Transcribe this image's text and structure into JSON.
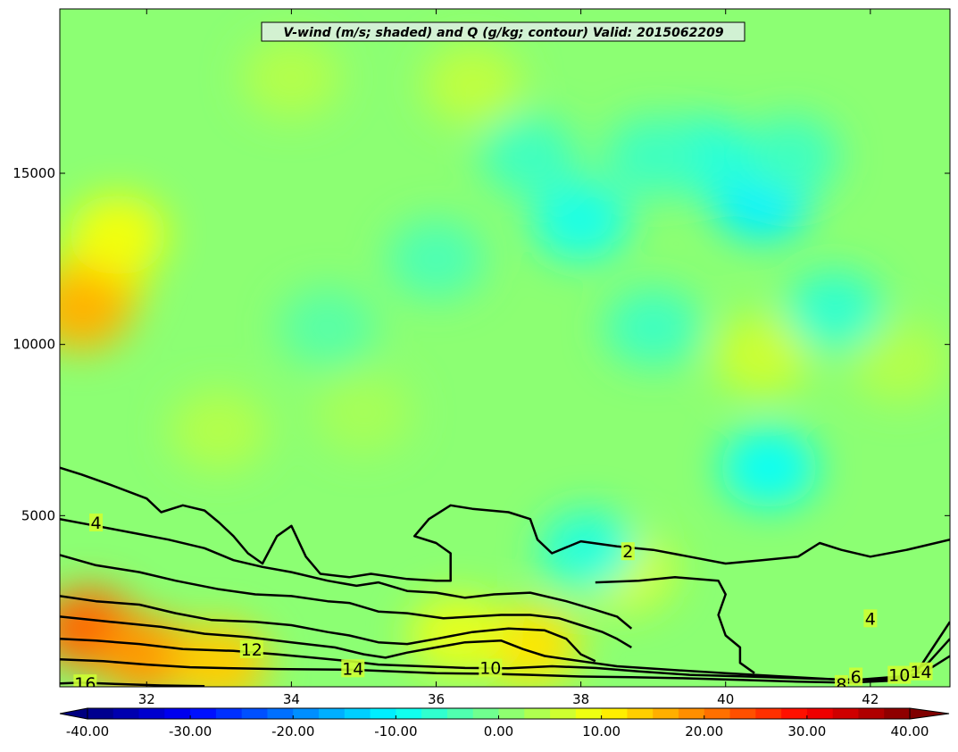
{
  "chart_data": {
    "type": "heatmap",
    "title": "V-wind (m/s; shaded) and Q (g/kg; contour) Valid: 2015062209",
    "xlabel": "",
    "ylabel": "",
    "xlim": [
      30.8,
      43.1
    ],
    "ylim": [
      0,
      19800
    ],
    "x_ticks": [
      32,
      34,
      36,
      38,
      40,
      42
    ],
    "x_tick_labels": [
      "32",
      "34",
      "36",
      "38",
      "40",
      "42"
    ],
    "y_ticks": [
      5000,
      10000,
      15000
    ],
    "y_tick_labels": [
      "5000",
      "10000",
      "15000"
    ],
    "colorbar": {
      "min": -40,
      "max": 40,
      "step": 2.5,
      "ticks": [
        -40,
        -30,
        -20,
        -10,
        0,
        10,
        20,
        30,
        40
      ],
      "tick_labels": [
        "-40.00",
        "-30.00",
        "-20.00",
        "-10.00",
        "0.00",
        "10.00",
        "20.00",
        "30.00",
        "40.00"
      ],
      "extend": "both",
      "colormap": "jet"
    },
    "shaded_regions": [
      {
        "x": 31.3,
        "y": 11800,
        "value": 12
      },
      {
        "x": 31.1,
        "y": 11000,
        "value": 16
      },
      {
        "x": 31.6,
        "y": 13200,
        "value": 9
      },
      {
        "x": 31.2,
        "y": 1700,
        "value": 22
      },
      {
        "x": 32.0,
        "y": 900,
        "value": 18
      },
      {
        "x": 33.0,
        "y": 700,
        "value": 14
      },
      {
        "x": 37.3,
        "y": 1200,
        "value": 12
      },
      {
        "x": 36.3,
        "y": 1500,
        "value": 8
      },
      {
        "x": 38.6,
        "y": 3400,
        "value": 7
      },
      {
        "x": 40.6,
        "y": 6400,
        "value": -9
      },
      {
        "x": 40.5,
        "y": 14200,
        "value": -11
      },
      {
        "x": 40.9,
        "y": 15500,
        "value": -5
      },
      {
        "x": 38.0,
        "y": 13600,
        "value": -8
      },
      {
        "x": 37.3,
        "y": 15500,
        "value": -5
      },
      {
        "x": 39.7,
        "y": 15500,
        "value": -7
      },
      {
        "x": 39.0,
        "y": 15500,
        "value": -5
      },
      {
        "x": 38.1,
        "y": 4000,
        "value": -7
      },
      {
        "x": 34.0,
        "y": 17800,
        "value": 4
      },
      {
        "x": 36.5,
        "y": 17600,
        "value": 5
      },
      {
        "x": 40.5,
        "y": 9700,
        "value": 6
      },
      {
        "x": 42.4,
        "y": 9500,
        "value": 4
      },
      {
        "x": 35.0,
        "y": 8000,
        "value": 3
      },
      {
        "x": 33.0,
        "y": 7500,
        "value": 4
      },
      {
        "x": 41.5,
        "y": 11000,
        "value": -6
      },
      {
        "x": 36.0,
        "y": 12500,
        "value": -4
      },
      {
        "x": 34.5,
        "y": 10500,
        "value": -3
      },
      {
        "x": 39.0,
        "y": 10500,
        "value": -5
      }
    ],
    "contour_levels": [
      2,
      4,
      6,
      8,
      10,
      12,
      14,
      16
    ],
    "contour_labels": [
      {
        "text": "2",
        "x": 38.65,
        "y": 3960
      },
      {
        "text": "4",
        "x": 31.3,
        "y": 4800
      },
      {
        "text": "4",
        "x": 42.0,
        "y": 2000
      },
      {
        "text": "6",
        "x": 41.8,
        "y": 300
      },
      {
        "text": "8",
        "x": 41.6,
        "y": 80
      },
      {
        "text": "10",
        "x": 36.75,
        "y": 560
      },
      {
        "text": "10",
        "x": 42.4,
        "y": 350
      },
      {
        "text": "12",
        "x": 33.45,
        "y": 1100
      },
      {
        "text": "14",
        "x": 34.85,
        "y": 540
      },
      {
        "text": "14",
        "x": 42.7,
        "y": 450
      },
      {
        "text": "16",
        "x": 31.15,
        "y": 100
      }
    ],
    "contours": [
      {
        "level": 2,
        "points": [
          [
            30.8,
            6400
          ],
          [
            31.1,
            6200
          ],
          [
            31.5,
            5900
          ],
          [
            32.0,
            5500
          ],
          [
            32.2,
            5100
          ],
          [
            32.5,
            5300
          ],
          [
            32.8,
            5150
          ],
          [
            33.0,
            4800
          ],
          [
            33.2,
            4400
          ],
          [
            33.4,
            3900
          ],
          [
            33.6,
            3600
          ],
          [
            33.8,
            4400
          ],
          [
            34.0,
            4700
          ],
          [
            34.2,
            3800
          ],
          [
            34.4,
            3300
          ],
          [
            34.8,
            3200
          ],
          [
            35.1,
            3300
          ],
          [
            35.6,
            3150
          ],
          [
            36.0,
            3100
          ],
          [
            36.2,
            3100
          ],
          [
            36.2,
            3900
          ],
          [
            36.0,
            4200
          ],
          [
            35.7,
            4400
          ],
          [
            35.9,
            4900
          ],
          [
            36.2,
            5300
          ],
          [
            36.5,
            5200
          ],
          [
            37.0,
            5100
          ],
          [
            37.3,
            4900
          ],
          [
            37.4,
            4300
          ],
          [
            37.6,
            3900
          ],
          [
            38.0,
            4250
          ],
          [
            38.5,
            4100
          ],
          [
            39.0,
            4000
          ],
          [
            39.5,
            3800
          ],
          [
            40.0,
            3600
          ],
          [
            40.5,
            3700
          ],
          [
            41.0,
            3800
          ],
          [
            41.3,
            4200
          ],
          [
            41.6,
            4000
          ],
          [
            42.0,
            3800
          ],
          [
            42.5,
            4000
          ],
          [
            43.1,
            4300
          ]
        ]
      },
      {
        "level": 4,
        "points": [
          [
            30.8,
            4900
          ],
          [
            31.3,
            4700
          ],
          [
            31.8,
            4500
          ],
          [
            32.3,
            4300
          ],
          [
            32.8,
            4050
          ],
          [
            33.2,
            3700
          ],
          [
            33.6,
            3500
          ],
          [
            34.0,
            3350
          ],
          [
            34.5,
            3100
          ],
          [
            34.9,
            2950
          ],
          [
            35.2,
            3050
          ],
          [
            35.6,
            2800
          ],
          [
            36.0,
            2750
          ],
          [
            36.4,
            2600
          ],
          [
            36.8,
            2700
          ],
          [
            37.3,
            2750
          ],
          [
            37.8,
            2500
          ],
          [
            38.2,
            2250
          ],
          [
            38.5,
            2050
          ],
          [
            38.7,
            1700
          ]
        ]
      },
      {
        "level": 4,
        "points": [
          [
            38.2,
            3050
          ],
          [
            38.8,
            3100
          ],
          [
            39.3,
            3200
          ],
          [
            39.9,
            3100
          ],
          [
            40.0,
            2700
          ],
          [
            39.9,
            2100
          ],
          [
            40.0,
            1500
          ],
          [
            40.2,
            1150
          ],
          [
            40.2,
            700
          ],
          [
            40.4,
            400
          ]
        ]
      },
      {
        "level": 6,
        "points": [
          [
            30.8,
            3850
          ],
          [
            31.3,
            3550
          ],
          [
            31.9,
            3350
          ],
          [
            32.4,
            3100
          ],
          [
            33.0,
            2850
          ],
          [
            33.5,
            2700
          ],
          [
            34.0,
            2650
          ],
          [
            34.5,
            2500
          ],
          [
            34.8,
            2450
          ],
          [
            35.2,
            2200
          ],
          [
            35.6,
            2150
          ],
          [
            36.1,
            2000
          ],
          [
            36.5,
            2050
          ],
          [
            36.9,
            2100
          ],
          [
            37.3,
            2100
          ],
          [
            37.7,
            2000
          ],
          [
            38.0,
            1800
          ],
          [
            38.3,
            1600
          ],
          [
            38.5,
            1400
          ],
          [
            38.7,
            1150
          ]
        ]
      },
      {
        "level": 8,
        "points": [
          [
            30.8,
            2650
          ],
          [
            31.3,
            2500
          ],
          [
            31.9,
            2400
          ],
          [
            32.4,
            2150
          ],
          [
            32.9,
            1950
          ],
          [
            33.5,
            1900
          ],
          [
            34.0,
            1800
          ],
          [
            34.5,
            1600
          ],
          [
            34.8,
            1500
          ],
          [
            35.2,
            1300
          ],
          [
            35.6,
            1250
          ],
          [
            36.0,
            1400
          ],
          [
            36.5,
            1600
          ],
          [
            37.0,
            1700
          ],
          [
            37.5,
            1650
          ],
          [
            37.8,
            1400
          ],
          [
            38.0,
            950
          ],
          [
            38.2,
            750
          ]
        ]
      },
      {
        "level": 10,
        "points": [
          [
            30.8,
            2050
          ],
          [
            31.5,
            1900
          ],
          [
            32.2,
            1750
          ],
          [
            32.8,
            1550
          ],
          [
            33.4,
            1450
          ],
          [
            34.0,
            1300
          ],
          [
            34.6,
            1150
          ],
          [
            35.0,
            950
          ],
          [
            35.3,
            850
          ],
          [
            35.6,
            1000
          ],
          [
            36.0,
            1150
          ],
          [
            36.4,
            1300
          ],
          [
            36.9,
            1350
          ],
          [
            37.2,
            1100
          ],
          [
            37.5,
            900
          ],
          [
            38.0,
            750
          ],
          [
            38.5,
            600
          ],
          [
            39.2,
            500
          ],
          [
            40.0,
            400
          ],
          [
            40.8,
            300
          ],
          [
            41.5,
            220
          ],
          [
            42.1,
            200
          ],
          [
            42.6,
            300
          ],
          [
            43.1,
            1900
          ]
        ]
      },
      {
        "level": 12,
        "points": [
          [
            30.8,
            1400
          ],
          [
            31.3,
            1350
          ],
          [
            31.9,
            1250
          ],
          [
            32.5,
            1100
          ],
          [
            33.2,
            1050
          ],
          [
            33.8,
            950
          ],
          [
            34.3,
            850
          ],
          [
            34.8,
            750
          ],
          [
            35.2,
            650
          ],
          [
            35.8,
            600
          ],
          [
            36.4,
            550
          ],
          [
            37.0,
            540
          ],
          [
            37.6,
            600
          ],
          [
            38.2,
            550
          ],
          [
            38.8,
            450
          ],
          [
            39.5,
            350
          ],
          [
            40.3,
            300
          ],
          [
            41.0,
            250
          ],
          [
            41.8,
            200
          ],
          [
            42.4,
            300
          ],
          [
            42.8,
            700
          ],
          [
            43.1,
            1400
          ]
        ]
      },
      {
        "level": 14,
        "points": [
          [
            30.8,
            800
          ],
          [
            31.4,
            750
          ],
          [
            32.0,
            650
          ],
          [
            32.6,
            570
          ],
          [
            33.2,
            540
          ],
          [
            33.8,
            520
          ],
          [
            34.3,
            510
          ],
          [
            34.8,
            500
          ],
          [
            35.4,
            450
          ],
          [
            36.0,
            400
          ],
          [
            36.7,
            380
          ],
          [
            37.3,
            350
          ],
          [
            38.0,
            300
          ],
          [
            38.7,
            280
          ],
          [
            39.4,
            250
          ],
          [
            40.2,
            200
          ],
          [
            41.0,
            150
          ],
          [
            41.7,
            120
          ],
          [
            42.3,
            180
          ],
          [
            42.8,
            500
          ],
          [
            43.1,
            900
          ]
        ]
      },
      {
        "level": 16,
        "points": [
          [
            30.8,
            100
          ],
          [
            31.1,
            120
          ],
          [
            31.6,
            80
          ],
          [
            32.2,
            40
          ],
          [
            32.8,
            20
          ]
        ]
      }
    ]
  }
}
